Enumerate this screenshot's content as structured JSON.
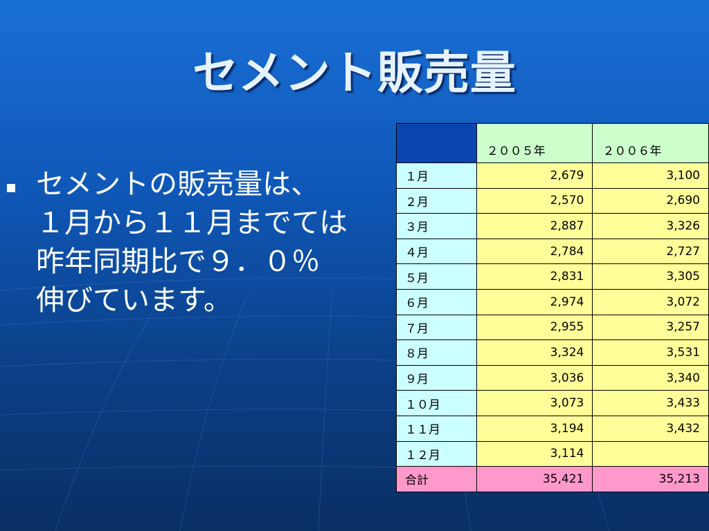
{
  "slide": {
    "title": "セメント販売量",
    "bullet_lines": [
      "セメントの販売量は、",
      "１月から１１月までては",
      "昨年同期比で９．０％",
      "伸びています。"
    ]
  },
  "table": {
    "headers": [
      "",
      "２００５年",
      "２００６年"
    ],
    "rows": [
      {
        "label": "１月",
        "y2005": "2,679",
        "y2006": "3,100"
      },
      {
        "label": "２月",
        "y2005": "2,570",
        "y2006": "2,690"
      },
      {
        "label": "３月",
        "y2005": "2,887",
        "y2006": "3,326"
      },
      {
        "label": "４月",
        "y2005": "2,784",
        "y2006": "2,727"
      },
      {
        "label": "５月",
        "y2005": "2,831",
        "y2006": "3,305"
      },
      {
        "label": "６月",
        "y2005": "2,974",
        "y2006": "3,072"
      },
      {
        "label": "７月",
        "y2005": "2,955",
        "y2006": "3,257"
      },
      {
        "label": "８月",
        "y2005": "3,324",
        "y2006": "3,531"
      },
      {
        "label": "９月",
        "y2005": "3,036",
        "y2006": "3,340"
      },
      {
        "label": "１０月",
        "y2005": "3,073",
        "y2006": "3,433"
      },
      {
        "label": "１１月",
        "y2005": "3,194",
        "y2006": "3,432"
      },
      {
        "label": "１２月",
        "y2005": "3,114",
        "y2006": ""
      }
    ],
    "total": {
      "label": "合計",
      "y2005": "35,421",
      "y2006": "35,213"
    }
  },
  "colors": {
    "background_top": "#1a6fd6",
    "background_bottom": "#0a2f63",
    "title_text": "#e6f3ff",
    "header_corner": "#0b45b0",
    "header_year": "#ccffcc",
    "month_cell": "#ccffff",
    "value_cell": "#ffff99",
    "total_row": "#ff99cc"
  }
}
